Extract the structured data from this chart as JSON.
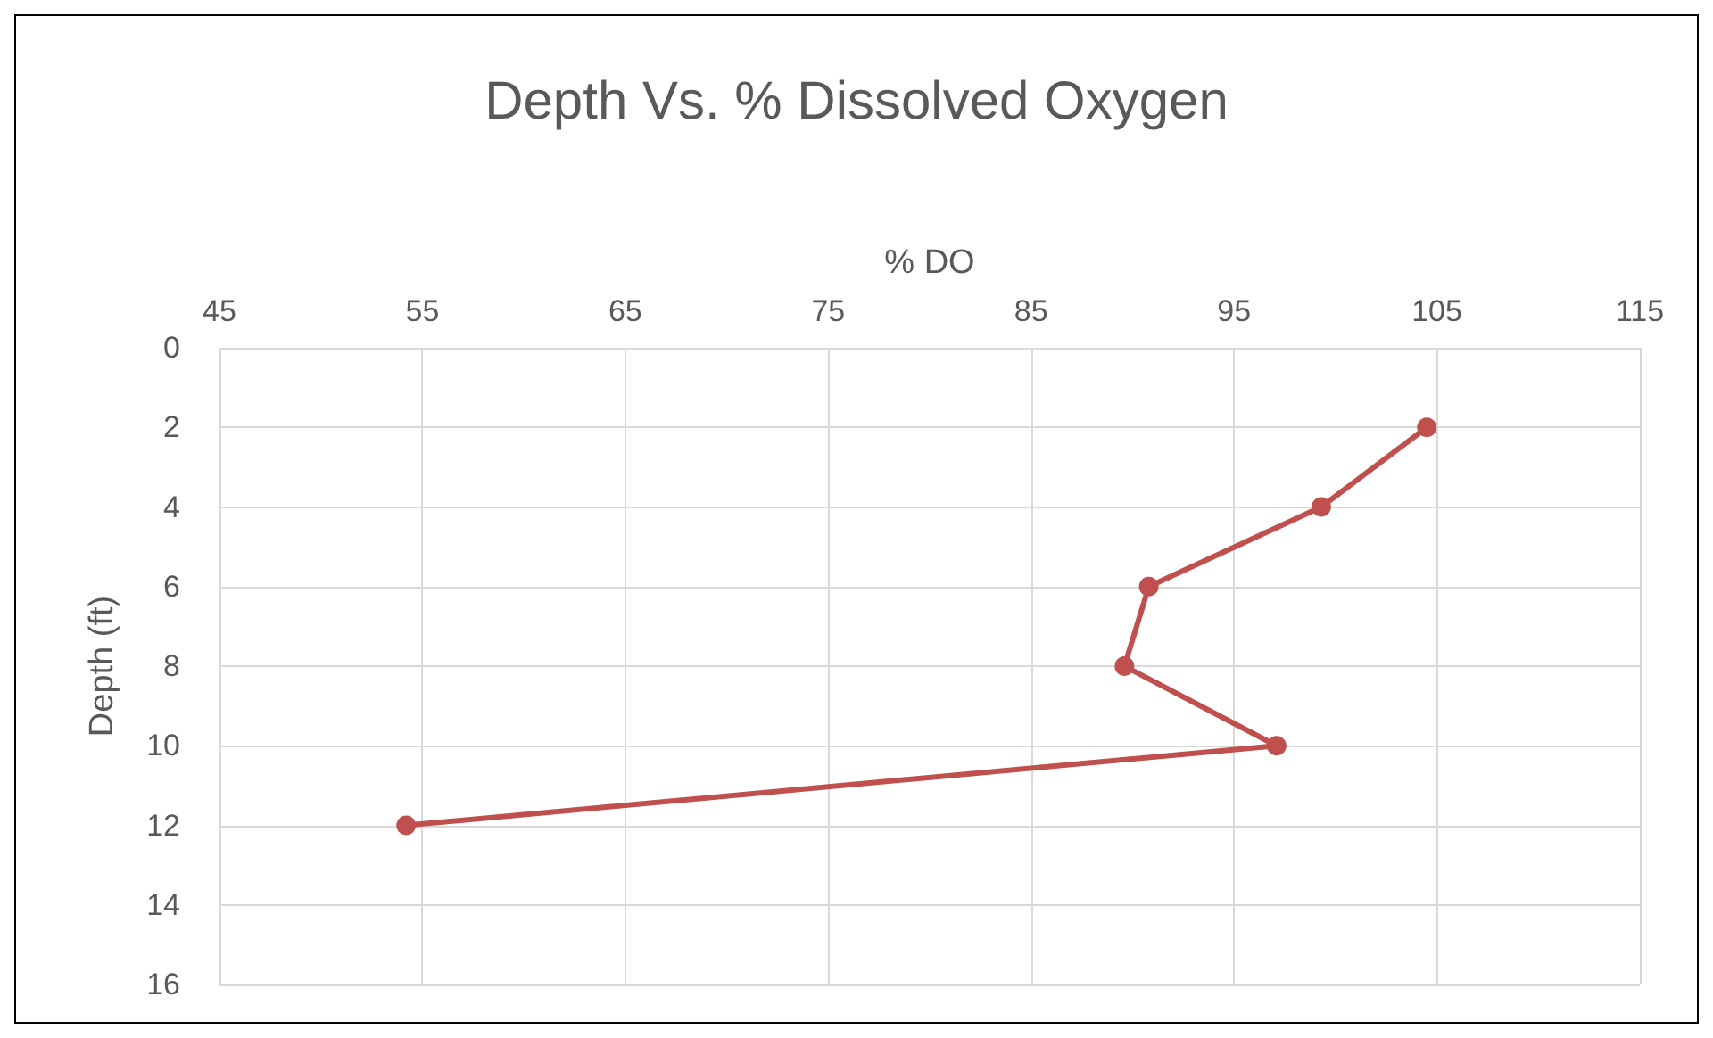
{
  "chart_data": {
    "type": "line",
    "title": "Depth Vs. % Dissolved Oxygen",
    "xlabel": "% DO",
    "ylabel": "Depth (ft)",
    "x": [
      104.5,
      99.3,
      90.8,
      89.6,
      97.1,
      54.2
    ],
    "series": [
      {
        "color": "#c0504d",
        "values": [
          2,
          4,
          6,
          8,
          10,
          12
        ]
      }
    ],
    "xlim": [
      45,
      115
    ],
    "xticks": [
      45,
      55,
      65,
      75,
      85,
      95,
      105,
      115
    ],
    "ylim": [
      16,
      0
    ],
    "yticks": [
      0,
      2,
      4,
      6,
      8,
      10,
      12,
      14,
      16
    ],
    "grid": true,
    "marker": "circle",
    "line_style": "solid"
  }
}
